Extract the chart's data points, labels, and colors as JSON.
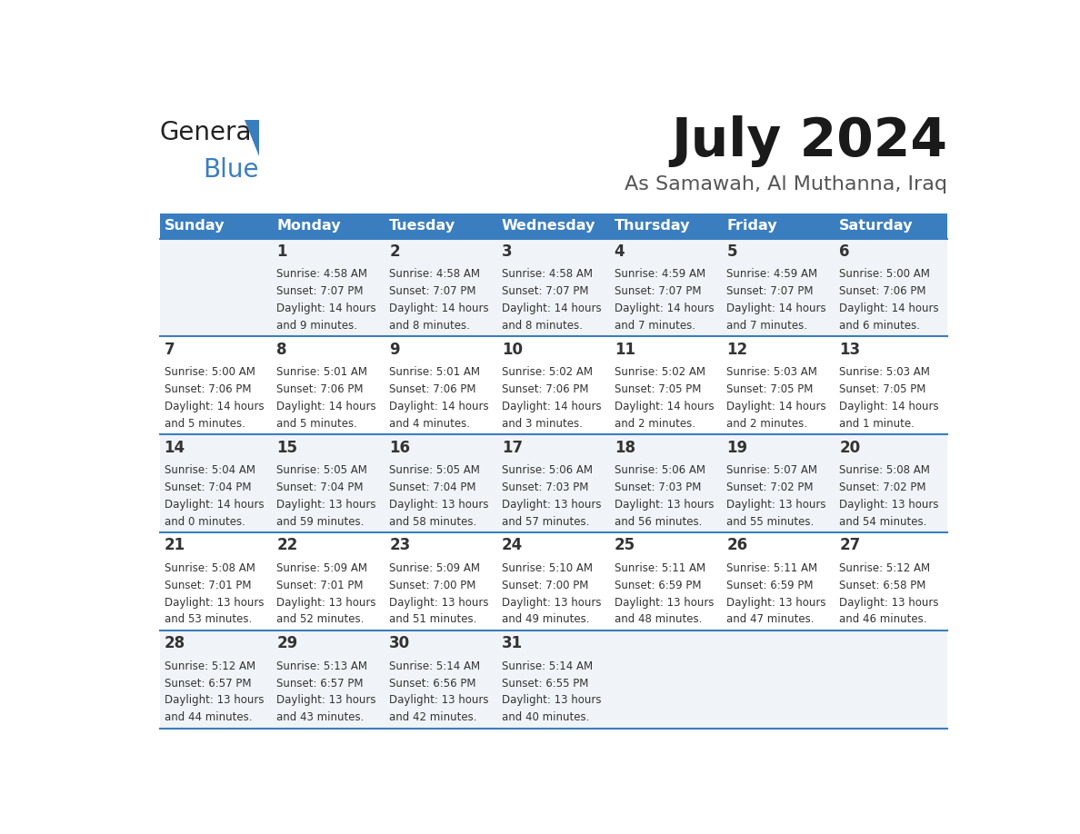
{
  "title": "July 2024",
  "subtitle": "As Samawah, Al Muthanna, Iraq",
  "header_color": "#3A7EBF",
  "header_text_color": "#FFFFFF",
  "days_of_week": [
    "Sunday",
    "Monday",
    "Tuesday",
    "Wednesday",
    "Thursday",
    "Friday",
    "Saturday"
  ],
  "bg_color": "#FFFFFF",
  "row_even_color": "#FFFFFF",
  "row_odd_color": "#F0F4F8",
  "divider_color": "#3A7EBF",
  "title_color": "#1a1a1a",
  "subtitle_color": "#555555",
  "text_color": "#333333",
  "calendar": [
    [
      {
        "day": "",
        "sunrise": "",
        "sunset": "",
        "daylight": ""
      },
      {
        "day": "1",
        "sunrise": "4:58 AM",
        "sunset": "7:07 PM",
        "daylight": "14 hours and 9 minutes."
      },
      {
        "day": "2",
        "sunrise": "4:58 AM",
        "sunset": "7:07 PM",
        "daylight": "14 hours and 8 minutes."
      },
      {
        "day": "3",
        "sunrise": "4:58 AM",
        "sunset": "7:07 PM",
        "daylight": "14 hours and 8 minutes."
      },
      {
        "day": "4",
        "sunrise": "4:59 AM",
        "sunset": "7:07 PM",
        "daylight": "14 hours and 7 minutes."
      },
      {
        "day": "5",
        "sunrise": "4:59 AM",
        "sunset": "7:07 PM",
        "daylight": "14 hours and 7 minutes."
      },
      {
        "day": "6",
        "sunrise": "5:00 AM",
        "sunset": "7:06 PM",
        "daylight": "14 hours and 6 minutes."
      }
    ],
    [
      {
        "day": "7",
        "sunrise": "5:00 AM",
        "sunset": "7:06 PM",
        "daylight": "14 hours and 5 minutes."
      },
      {
        "day": "8",
        "sunrise": "5:01 AM",
        "sunset": "7:06 PM",
        "daylight": "14 hours and 5 minutes."
      },
      {
        "day": "9",
        "sunrise": "5:01 AM",
        "sunset": "7:06 PM",
        "daylight": "14 hours and 4 minutes."
      },
      {
        "day": "10",
        "sunrise": "5:02 AM",
        "sunset": "7:06 PM",
        "daylight": "14 hours and 3 minutes."
      },
      {
        "day": "11",
        "sunrise": "5:02 AM",
        "sunset": "7:05 PM",
        "daylight": "14 hours and 2 minutes."
      },
      {
        "day": "12",
        "sunrise": "5:03 AM",
        "sunset": "7:05 PM",
        "daylight": "14 hours and 2 minutes."
      },
      {
        "day": "13",
        "sunrise": "5:03 AM",
        "sunset": "7:05 PM",
        "daylight": "14 hours and 1 minute."
      }
    ],
    [
      {
        "day": "14",
        "sunrise": "5:04 AM",
        "sunset": "7:04 PM",
        "daylight": "14 hours and 0 minutes."
      },
      {
        "day": "15",
        "sunrise": "5:05 AM",
        "sunset": "7:04 PM",
        "daylight": "13 hours and 59 minutes."
      },
      {
        "day": "16",
        "sunrise": "5:05 AM",
        "sunset": "7:04 PM",
        "daylight": "13 hours and 58 minutes."
      },
      {
        "day": "17",
        "sunrise": "5:06 AM",
        "sunset": "7:03 PM",
        "daylight": "13 hours and 57 minutes."
      },
      {
        "day": "18",
        "sunrise": "5:06 AM",
        "sunset": "7:03 PM",
        "daylight": "13 hours and 56 minutes."
      },
      {
        "day": "19",
        "sunrise": "5:07 AM",
        "sunset": "7:02 PM",
        "daylight": "13 hours and 55 minutes."
      },
      {
        "day": "20",
        "sunrise": "5:08 AM",
        "sunset": "7:02 PM",
        "daylight": "13 hours and 54 minutes."
      }
    ],
    [
      {
        "day": "21",
        "sunrise": "5:08 AM",
        "sunset": "7:01 PM",
        "daylight": "13 hours and 53 minutes."
      },
      {
        "day": "22",
        "sunrise": "5:09 AM",
        "sunset": "7:01 PM",
        "daylight": "13 hours and 52 minutes."
      },
      {
        "day": "23",
        "sunrise": "5:09 AM",
        "sunset": "7:00 PM",
        "daylight": "13 hours and 51 minutes."
      },
      {
        "day": "24",
        "sunrise": "5:10 AM",
        "sunset": "7:00 PM",
        "daylight": "13 hours and 49 minutes."
      },
      {
        "day": "25",
        "sunrise": "5:11 AM",
        "sunset": "6:59 PM",
        "daylight": "13 hours and 48 minutes."
      },
      {
        "day": "26",
        "sunrise": "5:11 AM",
        "sunset": "6:59 PM",
        "daylight": "13 hours and 47 minutes."
      },
      {
        "day": "27",
        "sunrise": "5:12 AM",
        "sunset": "6:58 PM",
        "daylight": "13 hours and 46 minutes."
      }
    ],
    [
      {
        "day": "28",
        "sunrise": "5:12 AM",
        "sunset": "6:57 PM",
        "daylight": "13 hours and 44 minutes."
      },
      {
        "day": "29",
        "sunrise": "5:13 AM",
        "sunset": "6:57 PM",
        "daylight": "13 hours and 43 minutes."
      },
      {
        "day": "30",
        "sunrise": "5:14 AM",
        "sunset": "6:56 PM",
        "daylight": "13 hours and 42 minutes."
      },
      {
        "day": "31",
        "sunrise": "5:14 AM",
        "sunset": "6:55 PM",
        "daylight": "13 hours and 40 minutes."
      },
      {
        "day": "",
        "sunrise": "",
        "sunset": "",
        "daylight": ""
      },
      {
        "day": "",
        "sunrise": "",
        "sunset": "",
        "daylight": ""
      },
      {
        "day": "",
        "sunrise": "",
        "sunset": "",
        "daylight": ""
      }
    ]
  ]
}
